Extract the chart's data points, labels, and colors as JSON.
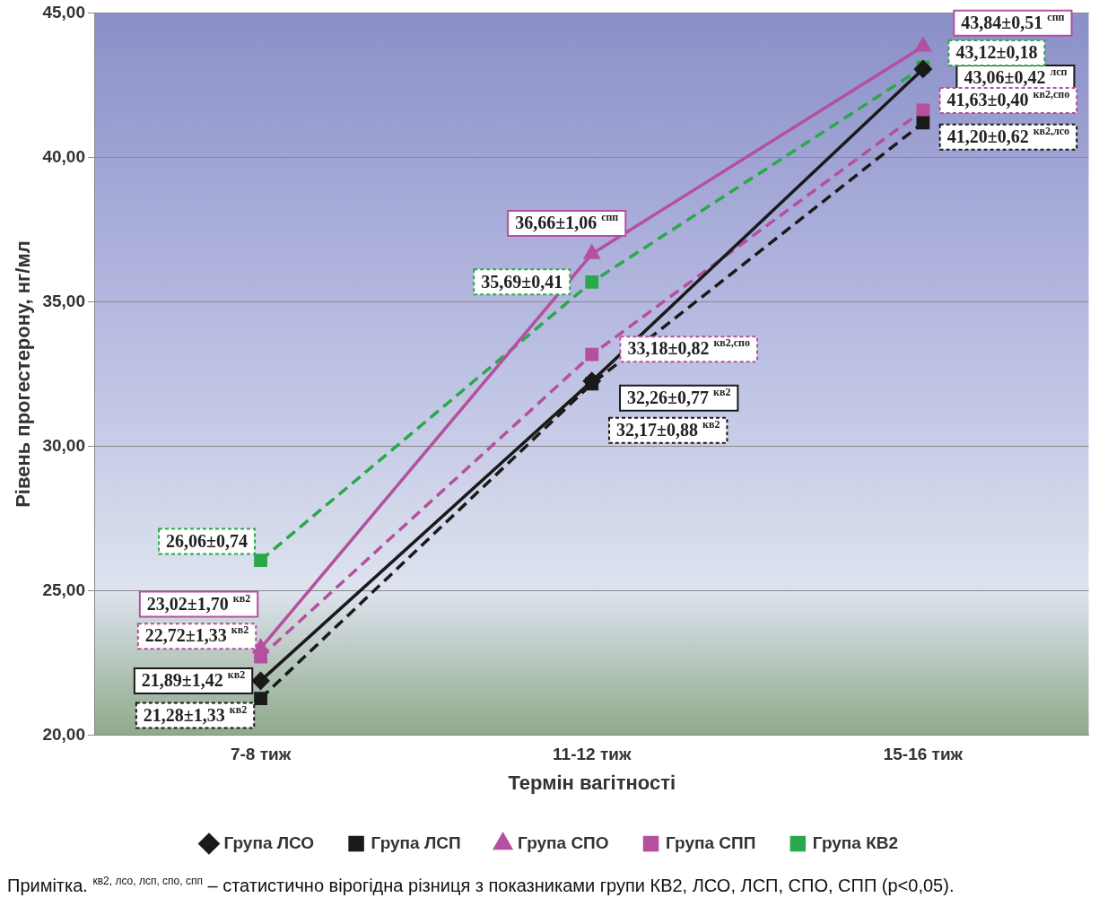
{
  "chart_data": {
    "type": "line",
    "xlabel": "Термін вагітності",
    "ylabel": "Рівень прогестерону, нг/мл",
    "categories": [
      "7-8 тиж",
      "11-12 тиж",
      "15-16 тиж"
    ],
    "ylim": [
      20,
      45
    ],
    "yticks": [
      {
        "value": 20,
        "label": "20,00"
      },
      {
        "value": 25,
        "label": "25,00"
      },
      {
        "value": 30,
        "label": "30,00"
      },
      {
        "value": 35,
        "label": "35,00"
      },
      {
        "value": 40,
        "label": "40,00"
      },
      {
        "value": 45,
        "label": "45,00"
      }
    ],
    "grid": "y",
    "legend": "bottom",
    "series": [
      {
        "name": "Група ЛСО",
        "color": "#1a1a1a",
        "line_style": "solid",
        "marker": "diamond",
        "values": [
          21.89,
          32.26,
          43.06
        ],
        "value_labels": [
          "21,89±1,42 $^{кв2}$",
          "32,26±0,77 $^{кв2}$",
          "43,06±0,42 $^{лсп}$"
        ]
      },
      {
        "name": "Група ЛСП",
        "color": "#1a1a1a",
        "line_style": "dashed",
        "marker": "square",
        "values": [
          21.28,
          32.17,
          41.2
        ],
        "value_labels": [
          "21,28±1,33 $^{кв2}$",
          "32,17±0,88 $^{кв2}$",
          "41,20±0,62 $^{кв2,лсо}$"
        ]
      },
      {
        "name": "Група СПО",
        "color": "#b4509f",
        "line_style": "solid",
        "marker": "triangle",
        "values": [
          23.02,
          36.66,
          43.84
        ],
        "value_labels": [
          "23,02±1,70 $^{кв2}$",
          "36,66±1,06 $^{спп}$",
          "43,84±0,51 $^{спп}$"
        ]
      },
      {
        "name": "Група СПП",
        "color": "#b4509f",
        "line_style": "dashed",
        "marker": "square",
        "values": [
          22.72,
          33.18,
          41.63
        ],
        "value_labels": [
          "22,72±1,33 $^{кв2}$",
          "33,18±0,82 $^{кв2,спо}$",
          "41,63±0,40 $^{кв2,спо}$"
        ]
      },
      {
        "name": "Група КВ2",
        "color": "#2aa84a",
        "line_style": "dashed",
        "marker": "square",
        "values": [
          26.06,
          35.69,
          43.12
        ],
        "value_labels": [
          "26,06±0,74",
          "35,69±0,41",
          "43,12±0,18"
        ]
      }
    ],
    "annotations": [
      "Примітка.      $^{кв2, лсо, лсп, спо, спп}$ – статистично вірогідна різниця з показниками групи КВ2, ЛСО, ЛСП, СПО, СПП (p<0,05)."
    ]
  }
}
